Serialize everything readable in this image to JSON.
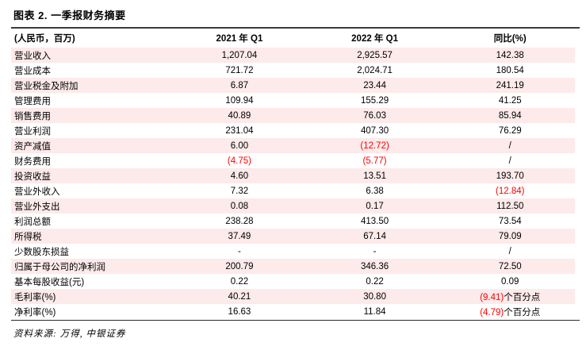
{
  "title": "图表 2. 一季报财务摘要",
  "colors": {
    "negative_red": "#ff0000",
    "row_stripe_pink": "#fdeaea",
    "title_rule_dark": "#3c3c3c"
  },
  "table": {
    "headers": [
      "(人民币，百万)",
      "2021 年 Q1",
      "2022 年 Q1",
      "同比(%)"
    ],
    "rows": [
      [
        "营业收入",
        "1,207.04",
        "2,925.57",
        "142.38"
      ],
      [
        "营业成本",
        "721.72",
        "2,024.71",
        "180.54"
      ],
      [
        "营业税金及附加",
        "6.87",
        "23.44",
        "241.19"
      ],
      [
        "管理费用",
        "109.94",
        "155.29",
        "41.25"
      ],
      [
        "销售费用",
        "40.89",
        "76.03",
        "85.94"
      ],
      [
        "营业利润",
        "231.04",
        "407.30",
        "76.29"
      ],
      [
        "资产减值",
        "6.00",
        "(12.72)",
        "/"
      ],
      [
        "财务费用",
        "(4.75)",
        "(5.77)",
        "/"
      ],
      [
        "投资收益",
        "4.60",
        "13.51",
        "193.70"
      ],
      [
        "营业外收入",
        "7.32",
        "6.38",
        "(12.84)"
      ],
      [
        "营业外支出",
        "0.08",
        "0.17",
        "112.50"
      ],
      [
        "利润总额",
        "238.28",
        "413.50",
        "73.54"
      ],
      [
        "所得税",
        "37.49",
        "67.14",
        "79.09"
      ],
      [
        "少数股东损益",
        "-",
        "-",
        "/"
      ],
      [
        "归属于母公司的净利润",
        "200.79",
        "346.36",
        "72.50"
      ],
      [
        "基本每股收益(元)",
        "0.22",
        "0.22",
        "0.09"
      ],
      [
        "毛利率(%)",
        "40.21",
        "30.80",
        "(9.41)个百分点"
      ],
      [
        "净利率(%)",
        "16.63",
        "11.84",
        "(4.79)个百分点"
      ]
    ]
  },
  "footer": {
    "source": "资料来源: 万得, 中银证券"
  }
}
